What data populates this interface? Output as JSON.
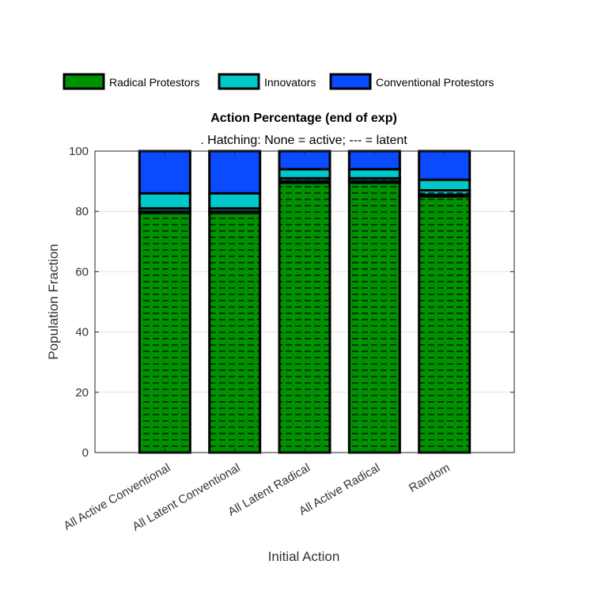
{
  "chart_data": {
    "type": "bar",
    "stacked": true,
    "title": "Action Percentage (end of exp)",
    "subtitle": ". Hatching: None = active; --- = latent",
    "xlabel": "Initial Action",
    "ylabel": "Population Fraction",
    "ylim": [
      0,
      100
    ],
    "yticks": [
      0,
      20,
      40,
      60,
      80,
      100
    ],
    "grid": true,
    "legend_position": "top",
    "categories": [
      "All Active Conventional",
      "All Latent Conventional",
      "All Latent Radical",
      "All Active Radical",
      "Random"
    ],
    "series": [
      {
        "name": "Radical Protestors",
        "state": "latent",
        "hatch": "---",
        "color": "#009100",
        "values": [
          79.5,
          79.5,
          89.5,
          89.5,
          85
        ]
      },
      {
        "name": "Radical Protestors",
        "state": "active",
        "hatch": "none",
        "color": "#009100",
        "values": [
          0.5,
          0.5,
          0.5,
          0.5,
          0.5
        ]
      },
      {
        "name": "Innovators",
        "state": "latent",
        "hatch": "---",
        "color": "#00C8C8",
        "values": [
          1,
          1,
          1,
          1,
          1.5
        ]
      },
      {
        "name": "Innovators",
        "state": "active",
        "hatch": "none",
        "color": "#00C8C8",
        "values": [
          5,
          5,
          3,
          3,
          3.5
        ]
      },
      {
        "name": "Conventional Protestors",
        "state": "active",
        "hatch": "none",
        "color": "#0A4BFF",
        "values": [
          14,
          14,
          6,
          6,
          9.5
        ]
      }
    ],
    "legend": [
      {
        "label": "Radical Protestors",
        "color": "#009100"
      },
      {
        "label": "Innovators",
        "color": "#00C8C8"
      },
      {
        "label": "Conventional Protestors",
        "color": "#0A4BFF"
      }
    ]
  }
}
